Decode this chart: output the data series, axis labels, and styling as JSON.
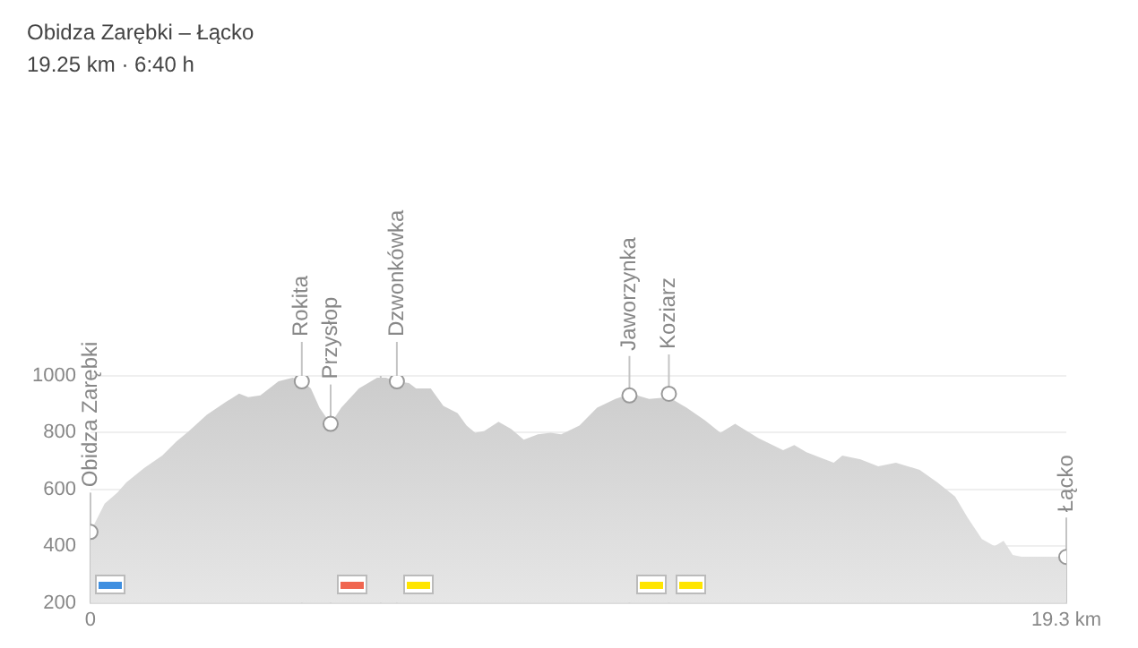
{
  "chart_data": {
    "type": "area",
    "title": "Obidza Zarębki – Łącko",
    "subtitle": "19.25 km · 6:40 h",
    "series": [
      {
        "color": "#cccccc",
        "x": [
          0,
          0.28,
          0.53,
          0.71,
          1.06,
          1.42,
          1.7,
          1.95,
          2.3,
          2.66,
          2.94,
          3.12,
          3.36,
          3.72,
          4.0,
          4.18,
          4.36,
          4.53,
          4.75,
          4.96,
          5.31,
          5.67,
          5.84,
          6.06,
          6.3,
          6.44,
          6.73,
          6.98,
          7.26,
          7.44,
          7.61,
          7.79,
          8.07,
          8.32,
          8.57,
          8.85,
          9.1,
          9.31,
          9.67,
          10.02,
          10.38,
          10.69,
          11.05,
          11.44,
          11.79,
          12.15,
          12.46,
          12.75,
          13.21,
          13.7,
          13.92,
          14.16,
          14.7,
          14.87,
          15.23,
          15.58,
          15.93,
          16.4,
          16.75,
          17.1,
          17.35,
          17.63,
          17.88,
          18.06,
          18.24,
          18.41,
          19.3
        ],
        "values": [
          450,
          550,
          588,
          625,
          675,
          719,
          769,
          806,
          863,
          906,
          938,
          925,
          931,
          981,
          994,
          981,
          956,
          888,
          831,
          888,
          956,
          994,
          994,
          981,
          975,
          956,
          956,
          894,
          869,
          825,
          800,
          806,
          838,
          813,
          775,
          794,
          800,
          794,
          825,
          888,
          919,
          938,
          919,
          925,
          888,
          844,
          800,
          831,
          781,
          738,
          756,
          731,
          694,
          719,
          706,
          681,
          694,
          669,
          625,
          575,
          500,
          425,
          400,
          419,
          369,
          363,
          363
        ]
      },
      {
        "type": "scatter",
        "marker": "circle",
        "color": "#ffffff",
        "x": [
          0,
          4.18,
          4.75,
          6.06,
          10.66,
          11.44,
          19.3
        ],
        "values": [
          450,
          981,
          831,
          981,
          931,
          937,
          362
        ]
      }
    ],
    "annotations": [
      {
        "text": "Obidza Zarębki",
        "x": 0,
        "y": 450
      },
      {
        "text": "Rokita",
        "x": 4.18,
        "y": 981
      },
      {
        "text": "Przysłop",
        "x": 4.75,
        "y": 831
      },
      {
        "text": "Dzwonkówka",
        "x": 6.06,
        "y": 981
      },
      {
        "text": "Jaworzynka",
        "x": 10.66,
        "y": 931
      },
      {
        "text": "Koziarz",
        "x": 11.44,
        "y": 937
      },
      {
        "text": "Łącko",
        "x": 19.3,
        "y": 362
      }
    ],
    "ref_lines": [
      {
        "axis": "x",
        "value": 5.74,
        "color": "#c4c4c4"
      }
    ],
    "xlim": [
      0,
      19.3
    ],
    "xticks": [
      0,
      {
        "value": 19.3,
        "label": "19.3 km"
      }
    ],
    "ylim": [
      200,
      1000
    ],
    "yticks": [
      200,
      400,
      600,
      800,
      1000
    ],
    "grid": "y",
    "legend": false
  }
}
